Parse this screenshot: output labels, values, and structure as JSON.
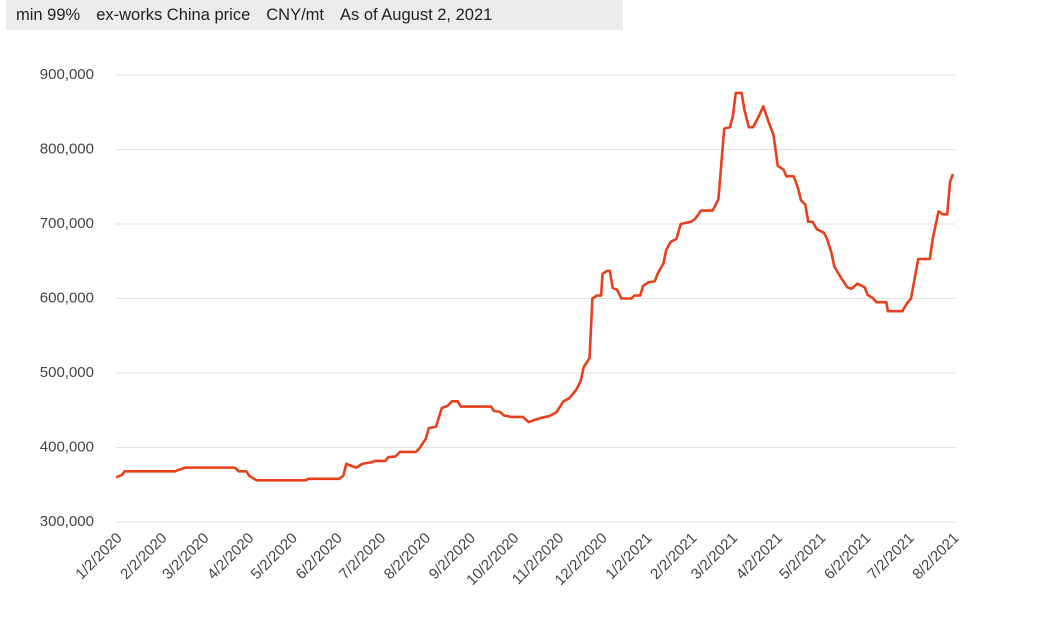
{
  "chart_data": {
    "type": "line",
    "header": [
      "min 99%",
      "ex-works China price",
      "CNY/mt",
      "As of August 2, 2021"
    ],
    "x": [
      "1/2/2020",
      "1/6/2020",
      "1/8/2020",
      "2/12/2020",
      "2/14/2020",
      "2/19/2020",
      "3/24/2020",
      "3/27/2020",
      "4/1/2020",
      "4/3/2020",
      "4/8/2020",
      "5/12/2020",
      "5/14/2020",
      "6/4/2020",
      "6/7/2020",
      "6/9/2020",
      "6/13/2020",
      "6/16/2020",
      "6/20/2020",
      "6/26/2020",
      "6/29/2020",
      "7/6/2020",
      "7/8/2020",
      "7/13/2020",
      "7/16/2020",
      "7/27/2020",
      "7/30/2020",
      "8/3/2020",
      "8/5/2020",
      "8/10/2020",
      "8/14/2020",
      "8/18/2020",
      "8/21/2020",
      "8/25/2020",
      "8/27/2020",
      "9/17/2020",
      "9/19/2020",
      "9/23/2020",
      "9/26/2020",
      "10/1/2020",
      "10/9/2020",
      "10/13/2020",
      "10/17/2020",
      "10/22/2020",
      "10/27/2020",
      "11/1/2020",
      "11/6/2020",
      "11/10/2020",
      "11/15/2020",
      "11/18/2020",
      "11/20/2020",
      "11/24/2020",
      "11/26/2020",
      "11/29/2020",
      "12/2/2020",
      "12/3/2020",
      "12/6/2020",
      "12/8/2020",
      "12/10/2020",
      "12/13/2020",
      "12/16/2020",
      "12/23/2020",
      "12/25/2020",
      "12/29/2020",
      "12/31/2020",
      "1/4/2021",
      "1/8/2021",
      "1/10/2021",
      "1/14/2021",
      "1/16/2021",
      "1/19/2021",
      "1/23/2021",
      "1/26/2021",
      "2/2/2021",
      "2/5/2021",
      "2/9/2021",
      "2/17/2021",
      "2/21/2021",
      "2/25/2021",
      "3/1/2021",
      "3/3/2021",
      "3/5/2021",
      "3/9/2021",
      "3/11/2021",
      "3/14/2021",
      "3/17/2021",
      "3/21/2021",
      "3/24/2021",
      "3/28/2021",
      "3/31/2021",
      "4/3/2021",
      "4/7/2021",
      "4/9/2021",
      "4/14/2021",
      "4/17/2021",
      "4/19/2021",
      "4/22/2021",
      "4/24/2021",
      "4/27/2021",
      "4/30/2021",
      "5/5/2021",
      "5/7/2021",
      "5/10/2021",
      "5/12/2021",
      "5/16/2021",
      "5/21/2021",
      "5/24/2021",
      "5/28/2021",
      "6/2/2021",
      "6/4/2021",
      "6/8/2021",
      "6/10/2021",
      "6/17/2021",
      "6/18/2021",
      "6/28/2021",
      "7/1/2021",
      "7/4/2021",
      "7/9/2021",
      "7/17/2021",
      "7/19/2021",
      "7/23/2021",
      "7/26/2021",
      "7/29/2021",
      "7/31/2021",
      "8/2/2021"
    ],
    "series": [
      {
        "color": "#e8401c",
        "values": [
          360000,
          363000,
          368000,
          368000,
          370000,
          373000,
          373000,
          368000,
          368000,
          362000,
          356000,
          356000,
          358000,
          358000,
          362000,
          378000,
          375000,
          373000,
          378000,
          380000,
          382000,
          382000,
          387000,
          388000,
          394000,
          394000,
          400000,
          412000,
          426000,
          428000,
          453000,
          456000,
          462000,
          462000,
          455000,
          455000,
          449000,
          448000,
          443000,
          441000,
          441000,
          434000,
          437000,
          440000,
          442000,
          447000,
          462000,
          466000,
          478000,
          490000,
          508000,
          520000,
          600000,
          604000,
          604000,
          633000,
          637000,
          637000,
          614000,
          612000,
          600000,
          600000,
          604000,
          604000,
          617000,
          622000,
          623000,
          633000,
          647000,
          665000,
          676000,
          680000,
          700000,
          703000,
          707000,
          718000,
          718000,
          733000,
          828000,
          830000,
          845000,
          876000,
          876000,
          853000,
          830000,
          830000,
          845000,
          858000,
          835000,
          820000,
          778000,
          773000,
          764000,
          764000,
          748000,
          732000,
          726000,
          703000,
          703000,
          693000,
          688000,
          680000,
          662000,
          643000,
          630000,
          615000,
          613000,
          620000,
          615000,
          605000,
          600000,
          595000,
          595000,
          583000,
          583000,
          593000,
          600000,
          653000,
          653000,
          680000,
          717000,
          713000,
          713000,
          757000,
          767000
        ]
      }
    ],
    "xlim": [
      "1/2/2020",
      "8/2/2021"
    ],
    "xticks": [
      "1/2/2020",
      "2/2/2020",
      "3/2/2020",
      "4/2/2020",
      "5/2/2020",
      "6/2/2020",
      "7/2/2020",
      "8/2/2020",
      "9/2/2020",
      "10/2/2020",
      "11/2/2020",
      "12/2/2020",
      "1/2/2021",
      "2/2/2021",
      "3/2/2021",
      "4/2/2021",
      "5/2/2021",
      "6/2/2021",
      "7/2/2021",
      "8/2/2021"
    ],
    "ylim": [
      300000,
      900000
    ],
    "yticks": [
      {
        "value": 300000,
        "label": "300,000"
      },
      {
        "value": 400000,
        "label": "400,000"
      },
      {
        "value": 500000,
        "label": "500,000"
      },
      {
        "value": 600000,
        "label": "600,000"
      },
      {
        "value": 700000,
        "label": "700,000"
      },
      {
        "value": 800000,
        "label": "800,000"
      },
      {
        "value": 900000,
        "label": "900,000"
      }
    ],
    "grid": true
  }
}
